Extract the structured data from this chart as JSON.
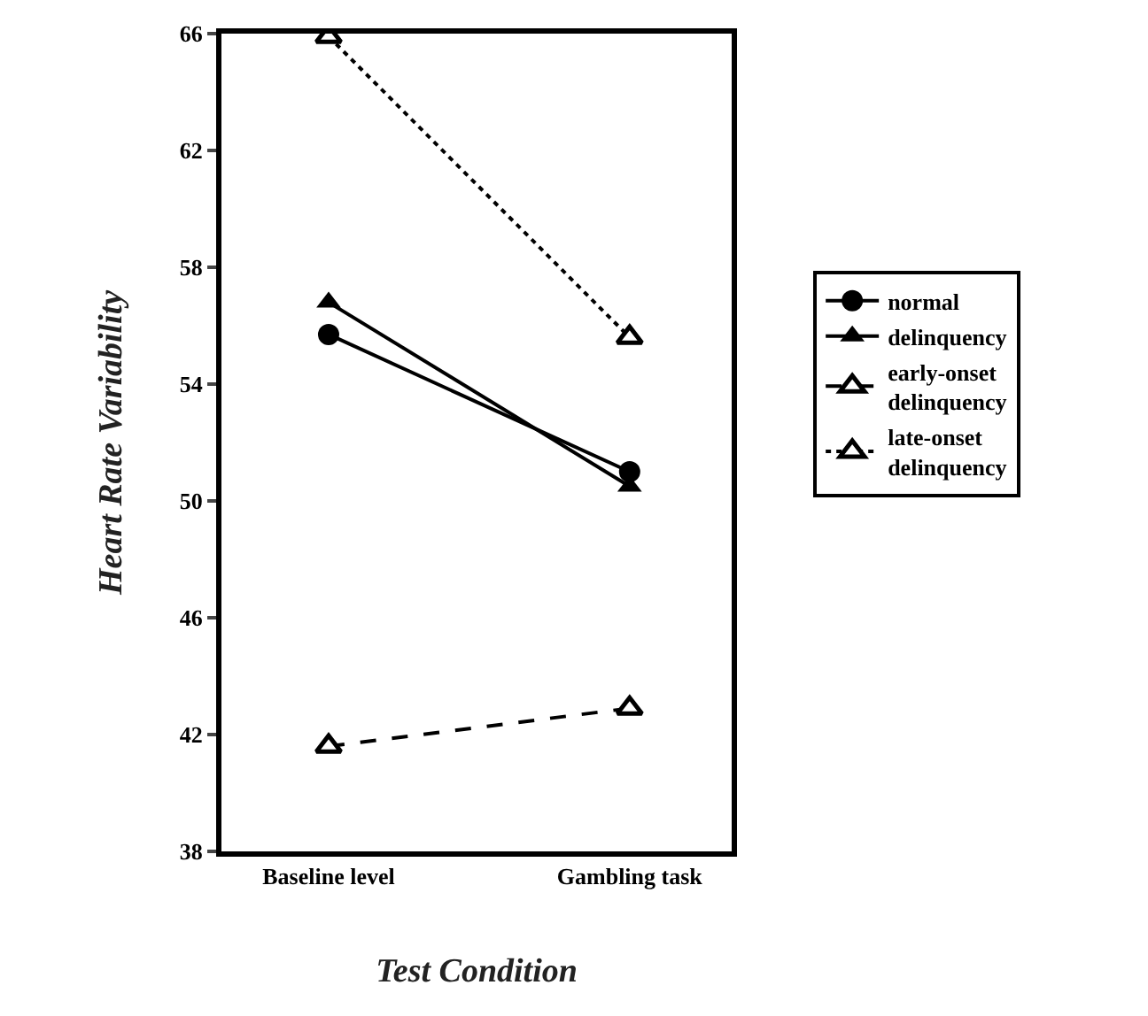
{
  "chart_data": {
    "type": "line",
    "xlabel": "Test Condition",
    "ylabel": "Heart Rate Variability",
    "categories": [
      "Baseline level",
      "Gambling task"
    ],
    "series": [
      {
        "name": "normal",
        "color": "#000000",
        "values": [
          55.7,
          51.0
        ],
        "marker": "circle",
        "line_style": "solid"
      },
      {
        "name": "delinquency",
        "color": "#000000",
        "values": [
          56.8,
          50.5
        ],
        "marker": "triangle",
        "line_style": "solid"
      },
      {
        "name": "early-onset delinquency",
        "color": "#000000",
        "values": [
          41.6,
          42.9
        ],
        "marker": "triangle",
        "line_style": "dashed"
      },
      {
        "name": "late-onset delinquency",
        "color": "#000000",
        "values": [
          65.9,
          55.6
        ],
        "marker": "triangle",
        "line_style": "dotted"
      }
    ],
    "ylim": [
      38,
      66
    ],
    "yticks": [
      38,
      42,
      46,
      50,
      54,
      58,
      62,
      66
    ],
    "legend": "right"
  }
}
